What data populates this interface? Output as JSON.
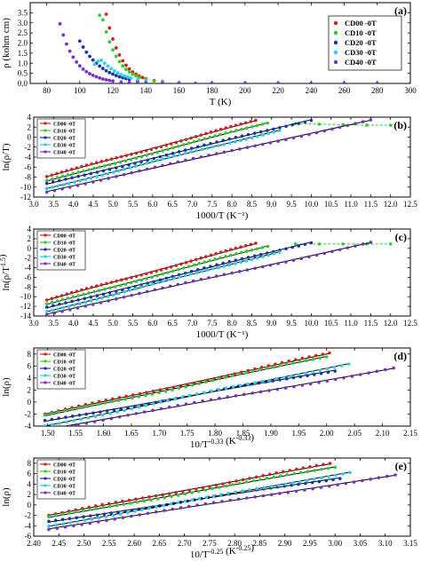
{
  "figure": {
    "colors": {
      "CD00": "#d62020",
      "CD10": "#2ecc2e",
      "CD20": "#1f2fb5",
      "CD30": "#22d3e0",
      "CD40": "#7b2ec4",
      "fit": "#000000"
    }
  },
  "chart_data": [
    {
      "panel": "(a)",
      "type": "scatter",
      "xlabel": "T (K)",
      "ylabel": "ρ (kohm cm)",
      "xlim": [
        70,
        300
      ],
      "ylim": [
        0,
        4.0
      ],
      "xticks": [
        "80",
        "100",
        "120",
        "140",
        "160",
        "180",
        "200",
        "220",
        "240",
        "260",
        "280",
        "300"
      ],
      "yticks": [
        "0.0",
        "0.5",
        "1.0",
        "1.5",
        "2.0",
        "2.5",
        "3.0",
        "3.5"
      ],
      "legend_position": "top-right",
      "fits": false,
      "series": [
        {
          "name": "CD00 -0T",
          "color_key": "CD00",
          "x": [
            116,
            118,
            120,
            122,
            124,
            126,
            128,
            130,
            132,
            134,
            136,
            138,
            140,
            145,
            150,
            160,
            180,
            200,
            220,
            240,
            260,
            280,
            300
          ],
          "y": [
            3.43,
            2.75,
            2.2,
            1.76,
            1.41,
            1.12,
            0.9,
            0.72,
            0.57,
            0.46,
            0.37,
            0.29,
            0.23,
            0.14,
            0.09,
            0.04,
            0.015,
            0.008,
            0.005,
            0.003,
            0.002,
            0.001,
            0.001
          ]
        },
        {
          "name": "CD10 -0T",
          "color_key": "CD10",
          "x": [
            112,
            114,
            116,
            118,
            120,
            122,
            124,
            126,
            128,
            130,
            132,
            134,
            136,
            140,
            145,
            150,
            160,
            180,
            200,
            220,
            240,
            260,
            280,
            300
          ],
          "y": [
            3.38,
            3.15,
            2.55,
            2.06,
            1.66,
            1.34,
            1.08,
            0.87,
            0.7,
            0.57,
            0.46,
            0.37,
            0.3,
            0.2,
            0.12,
            0.08,
            0.035,
            0.012,
            0.006,
            0.004,
            0.002,
            0.002,
            0.001,
            0.001
          ]
        },
        {
          "name": "CD20 -0T",
          "color_key": "CD20",
          "x": [
            100,
            102,
            104,
            106,
            108,
            110,
            112,
            114,
            116,
            118,
            120,
            122,
            124,
            126,
            128,
            130,
            135,
            140,
            150,
            160,
            180,
            200,
            220,
            240,
            260,
            280,
            300
          ],
          "y": [
            2.1,
            1.8,
            1.55,
            1.34,
            1.16,
            1.0,
            0.86,
            0.74,
            0.63,
            0.54,
            0.46,
            0.39,
            0.33,
            0.28,
            0.24,
            0.2,
            0.13,
            0.09,
            0.04,
            0.02,
            0.008,
            0.004,
            0.002,
            0.002,
            0.001,
            0.001,
            0.001
          ]
        },
        {
          "name": "CD30 -0T",
          "color_key": "CD30",
          "x": [
            109,
            111,
            113,
            115,
            117,
            119,
            121,
            123,
            125,
            127,
            129,
            131,
            135,
            140,
            150,
            160,
            180,
            200,
            220,
            240,
            260,
            280,
            300
          ],
          "y": [
            0.95,
            1.1,
            1.15,
            1.0,
            0.86,
            0.73,
            0.62,
            0.52,
            0.44,
            0.37,
            0.31,
            0.26,
            0.18,
            0.12,
            0.05,
            0.025,
            0.009,
            0.004,
            0.003,
            0.002,
            0.001,
            0.001,
            0.001
          ]
        },
        {
          "name": "CD40 -0T",
          "color_key": "CD40",
          "x": [
            88,
            90,
            92,
            94,
            96,
            98,
            100,
            102,
            104,
            106,
            108,
            110,
            112,
            114,
            116,
            118,
            120,
            125,
            130,
            135,
            140,
            150,
            160,
            170,
            180,
            200,
            220,
            240,
            260,
            280,
            300
          ],
          "y": [
            2.95,
            2.4,
            1.95,
            1.6,
            1.3,
            1.06,
            0.87,
            0.71,
            0.58,
            0.48,
            0.4,
            0.33,
            0.27,
            0.22,
            0.18,
            0.15,
            0.12,
            0.07,
            0.045,
            0.03,
            0.02,
            0.01,
            0.006,
            0.004,
            0.003,
            0.002,
            0.001,
            0.001,
            0.001,
            0.001,
            0.001
          ]
        }
      ]
    },
    {
      "panel": "(b)",
      "type": "scatter",
      "xlabel": "1000/T (K⁻¹)",
      "ylabel": "ln(ρ/T)",
      "xlim": [
        3.0,
        12.5
      ],
      "ylim": [
        -12,
        4
      ],
      "xticks": [
        "3.0",
        "3.5",
        "4.0",
        "4.5",
        "5.0",
        "5.5",
        "6.0",
        "6.5",
        "7.0",
        "7.5",
        "8.0",
        "8.5",
        "9.0",
        "9.5",
        "10.0",
        "10.5",
        "11.0",
        "11.5",
        "12.0",
        "12.5"
      ],
      "yticks": [
        "-12",
        "-10",
        "-8",
        "-6",
        "-4",
        "-2",
        "0",
        "2",
        "4"
      ],
      "legend_position": "top-left",
      "fits": true,
      "series": [
        {
          "name": "CD00 -0T",
          "color_key": "CD00",
          "x_start": 3.33,
          "x_end": 8.6,
          "y_start": -7.9,
          "y_end": 3.3,
          "tail": []
        },
        {
          "name": "CD10 -0T",
          "color_key": "CD10",
          "x_start": 3.33,
          "x_end": 8.9,
          "y_start": -8.8,
          "y_end": 2.9,
          "tail": [
            [
              9.6,
              2.7
            ],
            [
              10.2,
              2.6
            ],
            [
              10.8,
              2.5
            ],
            [
              11.4,
              2.4
            ],
            [
              12.0,
              2.4
            ]
          ]
        },
        {
          "name": "CD20 -0T",
          "color_key": "CD20",
          "x_start": 3.33,
          "x_end": 10.0,
          "y_start": -9.4,
          "y_end": 3.5,
          "tail": []
        },
        {
          "name": "CD30 -0T",
          "color_key": "CD30",
          "x_start": 3.33,
          "x_end": 9.2,
          "y_start": -10.3,
          "y_end": 1.4,
          "tail": []
        },
        {
          "name": "CD40 -0T",
          "color_key": "CD40",
          "x_start": 3.33,
          "x_end": 11.5,
          "y_start": -10.9,
          "y_end": 3.4,
          "tail": []
        }
      ]
    },
    {
      "panel": "(c)",
      "type": "scatter",
      "xlabel": "1000/T (K⁻¹)",
      "ylabel": "ln(ρ/T^1.5)",
      "xlim": [
        3.0,
        12.5
      ],
      "ylim": [
        -14,
        4
      ],
      "xticks": [
        "3.0",
        "3.5",
        "4.0",
        "4.5",
        "5.0",
        "5.5",
        "6.0",
        "6.5",
        "7.0",
        "7.5",
        "8.0",
        "8.5",
        "9.0",
        "9.5",
        "10.0",
        "10.5",
        "11.0",
        "11.5",
        "12.0",
        "12.5"
      ],
      "yticks": [
        "-14",
        "-12",
        "-10",
        "-8",
        "-6",
        "-4",
        "-2",
        "0",
        "2",
        "4"
      ],
      "legend_position": "top-left",
      "fits": true,
      "series": [
        {
          "name": "CD00 -0T",
          "color_key": "CD00",
          "x_start": 3.33,
          "x_end": 8.6,
          "y_start": -10.7,
          "y_end": 1.0,
          "tail": []
        },
        {
          "name": "CD10 -0T",
          "color_key": "CD10",
          "x_start": 3.33,
          "x_end": 8.9,
          "y_start": -11.6,
          "y_end": 0.5,
          "tail": [
            [
              9.6,
              0.9
            ],
            [
              10.2,
              0.9
            ],
            [
              10.8,
              0.9
            ],
            [
              11.4,
              0.9
            ],
            [
              12.0,
              0.9
            ]
          ]
        },
        {
          "name": "CD20 -0T",
          "color_key": "CD20",
          "x_start": 3.33,
          "x_end": 10.0,
          "y_start": -12.3,
          "y_end": 1.3,
          "tail": []
        },
        {
          "name": "CD30 -0T",
          "color_key": "CD30",
          "x_start": 3.33,
          "x_end": 9.2,
          "y_start": -13.1,
          "y_end": -0.7,
          "tail": []
        },
        {
          "name": "CD40 -0T",
          "color_key": "CD40",
          "x_start": 3.33,
          "x_end": 11.5,
          "y_start": -13.6,
          "y_end": 1.2,
          "tail": []
        }
      ]
    },
    {
      "panel": "(d)",
      "type": "scatter",
      "xlabel": "10/T^-0.33 (K^-0.33)",
      "ylabel": "ln(ρ)",
      "xlim": [
        1.475,
        2.15
      ],
      "ylim": [
        -4,
        9
      ],
      "xticks": [
        "1.50",
        "1.55",
        "1.60",
        "1.65",
        "1.70",
        "1.75",
        "1.80",
        "1.85",
        "1.90",
        "1.95",
        "2.00",
        "2.05",
        "2.10",
        "2.15"
      ],
      "yticks": [
        "-4",
        "-2",
        "0",
        "2",
        "4",
        "6",
        "8"
      ],
      "legend_position": "top-left",
      "fits": true,
      "series": [
        {
          "name": "CD00 -0T",
          "color_key": "CD00",
          "x_start": 1.495,
          "x_end": 2.005,
          "y_start": -2.0,
          "y_end": 8.1,
          "tail": []
        },
        {
          "name": "CD10 -0T",
          "color_key": "CD10",
          "x_start": 1.495,
          "x_end": 2.0,
          "y_start": -2.3,
          "y_end": 7.6,
          "tail": []
        },
        {
          "name": "CD20 -0T",
          "color_key": "CD20",
          "x_start": 1.495,
          "x_end": 2.015,
          "y_start": -3.2,
          "y_end": 5.3,
          "tail": []
        },
        {
          "name": "CD30 -0T",
          "color_key": "CD30",
          "x_start": 1.495,
          "x_end": 2.04,
          "y_start": -4.0,
          "y_end": 6.4,
          "tail": []
        },
        {
          "name": "CD40 -0T",
          "color_key": "CD40",
          "x_start": 1.495,
          "x_end": 2.12,
          "y_start": -4.6,
          "y_end": 5.6,
          "tail": []
        }
      ]
    },
    {
      "panel": "(e)",
      "type": "scatter",
      "xlabel": "10/T^-0.25 (K^-0.25)",
      "ylabel": "ln(ρ)",
      "xlim": [
        2.4,
        3.15
      ],
      "ylim": [
        -6,
        9
      ],
      "xticks": [
        "2.40",
        "2.45",
        "2.50",
        "2.55",
        "2.60",
        "2.65",
        "2.70",
        "2.75",
        "2.80",
        "2.85",
        "2.90",
        "2.95",
        "3.00",
        "3.05",
        "3.10",
        "3.15"
      ],
      "yticks": [
        "-6",
        "-4",
        "-2",
        "0",
        "2",
        "4",
        "6",
        "8"
      ],
      "legend_position": "top-left",
      "fits": true,
      "series": [
        {
          "name": "CD00 -0T",
          "color_key": "CD00",
          "x_start": 2.43,
          "x_end": 2.99,
          "y_start": -2.0,
          "y_end": 7.9,
          "tail": []
        },
        {
          "name": "CD10 -0T",
          "color_key": "CD10",
          "x_start": 2.43,
          "x_end": 3.0,
          "y_start": -2.4,
          "y_end": 7.3,
          "tail": []
        },
        {
          "name": "CD20 -0T",
          "color_key": "CD20",
          "x_start": 2.43,
          "x_end": 3.01,
          "y_start": -3.3,
          "y_end": 5.2,
          "tail": []
        },
        {
          "name": "CD30 -0T",
          "color_key": "CD30",
          "x_start": 2.43,
          "x_end": 3.03,
          "y_start": -4.1,
          "y_end": 6.3,
          "tail": []
        },
        {
          "name": "CD40 -0T",
          "color_key": "CD40",
          "x_start": 2.43,
          "x_end": 3.12,
          "y_start": -4.6,
          "y_end": 5.7,
          "tail": []
        }
      ]
    }
  ]
}
